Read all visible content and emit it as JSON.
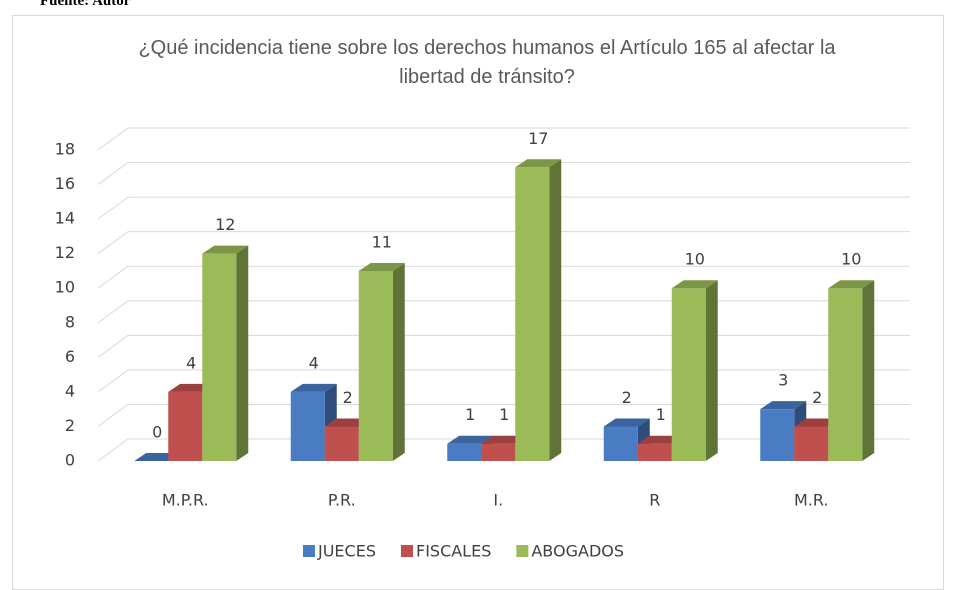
{
  "chart_data": {
    "type": "bar3d",
    "source": "Fuente: Autor",
    "title": "¿Qué incidencia tiene sobre los derechos humanos el Artículo 165 al afectar la libertad de tránsito?",
    "categories": [
      "M.P.R.",
      "P.R.",
      "I.",
      "R",
      "M.R."
    ],
    "series": [
      {
        "name": "JUECES",
        "color": "#4a7cc4",
        "values": [
          0,
          4,
          1,
          2,
          3
        ]
      },
      {
        "name": "FISCALES",
        "color": "#c0504d",
        "values": [
          4,
          2,
          1,
          1,
          2
        ]
      },
      {
        "name": "ABOGADOS",
        "color": "#9bbb59",
        "values": [
          12,
          11,
          17,
          10,
          10
        ]
      }
    ],
    "ylim": [
      0,
      18
    ],
    "yticks": [
      0,
      2,
      4,
      6,
      8,
      10,
      12,
      14,
      16,
      18
    ],
    "grid": true,
    "legend": "bottom"
  }
}
